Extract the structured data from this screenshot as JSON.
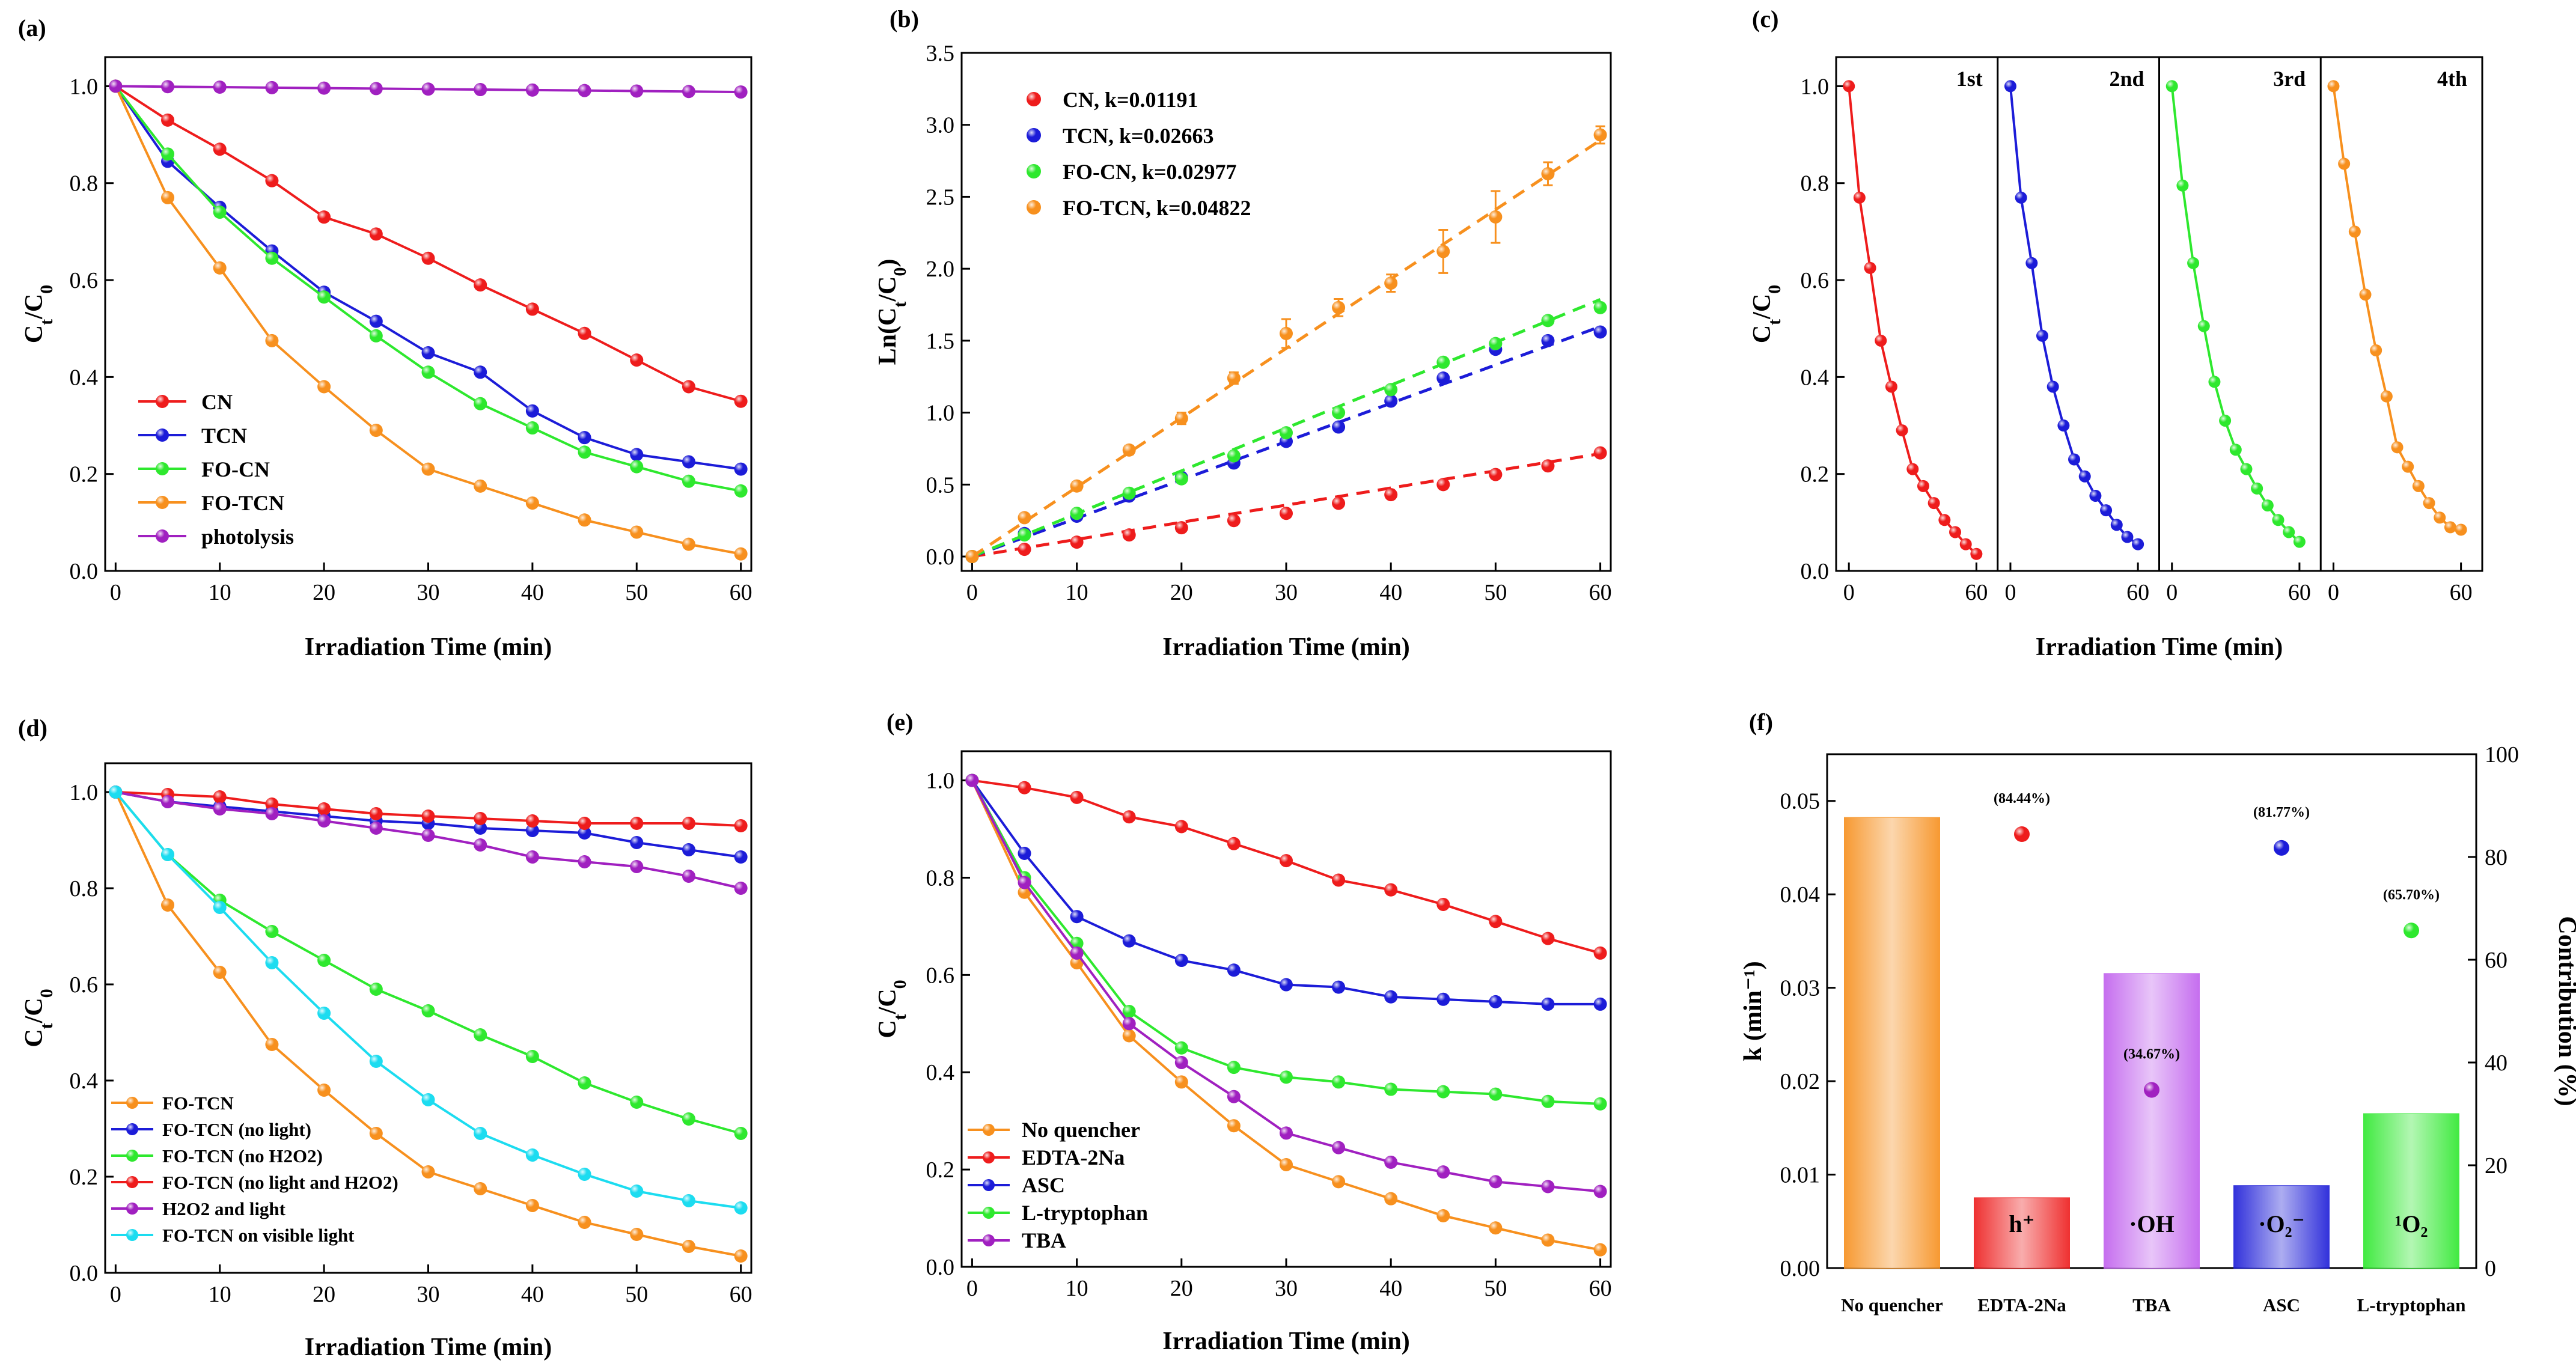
{
  "chart_data": [
    {
      "panel": "(a)",
      "type": "line",
      "xlabel": "Irradiation Time (min)",
      "ylabel": "Ct/C0",
      "xlim": [
        -1,
        61
      ],
      "ylim": [
        0,
        1.06
      ],
      "xticks": [
        0,
        10,
        20,
        30,
        40,
        50,
        60
      ],
      "yticks": [
        0.0,
        0.2,
        0.4,
        0.6,
        0.8,
        1.0
      ],
      "x": [
        0,
        5,
        10,
        15,
        20,
        25,
        30,
        35,
        40,
        45,
        50,
        55,
        60
      ],
      "legend_position": "bottom-left",
      "series": [
        {
          "name": "CN",
          "color": "#ee1c1c",
          "values": [
            1.0,
            0.93,
            0.87,
            0.805,
            0.73,
            0.695,
            0.645,
            0.59,
            0.54,
            0.49,
            0.435,
            0.38,
            0.35
          ]
        },
        {
          "name": "TCN",
          "color": "#1c1cd8",
          "values": [
            1.0,
            0.845,
            0.75,
            0.66,
            0.575,
            0.515,
            0.45,
            0.41,
            0.33,
            0.275,
            0.24,
            0.225,
            0.21
          ]
        },
        {
          "name": "FO-CN",
          "color": "#2ee82e",
          "values": [
            1.0,
            0.86,
            0.74,
            0.645,
            0.565,
            0.485,
            0.41,
            0.345,
            0.295,
            0.245,
            0.215,
            0.185,
            0.165
          ]
        },
        {
          "name": "FO-TCN",
          "color": "#f7901e",
          "values": [
            1.0,
            0.77,
            0.625,
            0.475,
            0.38,
            0.29,
            0.21,
            0.175,
            0.14,
            0.105,
            0.08,
            0.055,
            0.035
          ]
        },
        {
          "name": "photolysis",
          "color": "#a020c0",
          "values": [
            1.0,
            0.999,
            0.998,
            0.997,
            0.996,
            0.995,
            0.994,
            0.993,
            0.992,
            0.991,
            0.99,
            0.989,
            0.988
          ]
        }
      ]
    },
    {
      "panel": "(b)",
      "type": "scatter",
      "xlabel": "Irradiation Time (min)",
      "ylabel": "Ln(Ct/C0)",
      "xlim": [
        -1,
        61
      ],
      "ylim": [
        -0.1,
        3.5
      ],
      "xticks": [
        0,
        10,
        20,
        30,
        40,
        50,
        60
      ],
      "yticks": [
        0.0,
        0.5,
        1.0,
        1.5,
        2.0,
        2.5,
        3.0,
        3.5
      ],
      "x": [
        0,
        5,
        10,
        15,
        20,
        25,
        30,
        35,
        40,
        45,
        50,
        55,
        60
      ],
      "fit_lines": "dashed linear fits",
      "legend_position": "top-left",
      "series": [
        {
          "name": "CN, k=0.01191",
          "color": "#ee1c1c",
          "k": 0.01191,
          "values": [
            0,
            0.05,
            0.1,
            0.15,
            0.2,
            0.25,
            0.3,
            0.37,
            0.43,
            0.5,
            0.57,
            0.63,
            0.72
          ]
        },
        {
          "name": "TCN, k=0.02663",
          "color": "#1c1cd8",
          "k": 0.02663,
          "values": [
            0,
            0.16,
            0.28,
            0.42,
            0.55,
            0.65,
            0.8,
            0.9,
            1.08,
            1.24,
            1.44,
            1.5,
            1.56
          ]
        },
        {
          "name": "FO-CN, k=0.02977",
          "color": "#2ee82e",
          "k": 0.02977,
          "values": [
            0,
            0.15,
            0.3,
            0.44,
            0.54,
            0.7,
            0.86,
            1.0,
            1.16,
            1.35,
            1.48,
            1.64,
            1.73
          ]
        },
        {
          "name": "FO-TCN, k=0.04822",
          "color": "#f7901e",
          "k": 0.04822,
          "values": [
            0,
            0.27,
            0.49,
            0.74,
            0.96,
            1.24,
            1.55,
            1.73,
            1.9,
            2.12,
            2.36,
            2.66,
            2.93
          ],
          "errors": [
            0,
            0.02,
            0.03,
            0.03,
            0.04,
            0.04,
            0.1,
            0.06,
            0.06,
            0.15,
            0.18,
            0.08,
            0.06
          ]
        }
      ]
    },
    {
      "panel": "(c)",
      "type": "line",
      "xlabel": "Irradiation Time (min)",
      "ylabel": "Ct/C0",
      "ylim": [
        0,
        1.06
      ],
      "yticks": [
        0.0,
        0.2,
        0.4,
        0.6,
        0.8,
        1.0
      ],
      "subpanel_xlim": [
        -6,
        70
      ],
      "subpanel_xticks": [
        0,
        60
      ],
      "x": [
        0,
        5,
        10,
        15,
        20,
        25,
        30,
        35,
        40,
        45,
        50,
        55,
        60
      ],
      "series": [
        {
          "name": "1st",
          "color": "#ee1c1c",
          "values": [
            1.0,
            0.77,
            0.625,
            0.475,
            0.38,
            0.29,
            0.21,
            0.175,
            0.14,
            0.105,
            0.08,
            0.055,
            0.035
          ]
        },
        {
          "name": "2nd",
          "color": "#1c1cd8",
          "values": [
            1.0,
            0.77,
            0.635,
            0.485,
            0.38,
            0.3,
            0.23,
            0.195,
            0.155,
            0.125,
            0.095,
            0.07,
            0.055
          ]
        },
        {
          "name": "3rd",
          "color": "#2ee82e",
          "values": [
            1.0,
            0.795,
            0.635,
            0.505,
            0.39,
            0.31,
            0.25,
            0.21,
            0.17,
            0.135,
            0.105,
            0.08,
            0.06
          ]
        },
        {
          "name": "4th",
          "color": "#f7901e",
          "values": [
            1.0,
            0.84,
            0.7,
            0.57,
            0.455,
            0.36,
            0.255,
            0.215,
            0.175,
            0.14,
            0.11,
            0.09,
            0.085
          ]
        }
      ]
    },
    {
      "panel": "(d)",
      "type": "line",
      "xlabel": "Irradiation Time (min)",
      "ylabel": "Ct/C0",
      "xlim": [
        -1,
        61
      ],
      "ylim": [
        0,
        1.06
      ],
      "xticks": [
        0,
        10,
        20,
        30,
        40,
        50,
        60
      ],
      "yticks": [
        0.0,
        0.2,
        0.4,
        0.6,
        0.8,
        1.0
      ],
      "x": [
        0,
        5,
        10,
        15,
        20,
        25,
        30,
        35,
        40,
        45,
        50,
        55,
        60
      ],
      "legend_position": "bottom-left",
      "series": [
        {
          "name": "FO-TCN",
          "color": "#f7901e",
          "values": [
            1.0,
            0.765,
            0.625,
            0.475,
            0.38,
            0.29,
            0.21,
            0.175,
            0.14,
            0.105,
            0.08,
            0.055,
            0.035
          ]
        },
        {
          "name": "FO-TCN (no light)",
          "color": "#1c1cd8",
          "values": [
            1.0,
            0.98,
            0.97,
            0.96,
            0.95,
            0.94,
            0.935,
            0.925,
            0.92,
            0.915,
            0.895,
            0.88,
            0.865
          ]
        },
        {
          "name": "FO-TCN (no H2O2)",
          "color": "#2ee82e",
          "values": [
            1.0,
            0.87,
            0.775,
            0.71,
            0.65,
            0.59,
            0.545,
            0.495,
            0.45,
            0.395,
            0.355,
            0.32,
            0.29
          ]
        },
        {
          "name": "FO-TCN (no light and H2O2)",
          "color": "#ee1c1c",
          "values": [
            1.0,
            0.995,
            0.99,
            0.975,
            0.965,
            0.955,
            0.95,
            0.945,
            0.94,
            0.935,
            0.935,
            0.935,
            0.93
          ]
        },
        {
          "name": "H2O2 and light",
          "color": "#a020c0",
          "values": [
            1.0,
            0.98,
            0.965,
            0.955,
            0.94,
            0.925,
            0.91,
            0.89,
            0.865,
            0.855,
            0.845,
            0.825,
            0.8
          ]
        },
        {
          "name": "FO-TCN on visible light",
          "color": "#1cdcf0",
          "values": [
            1.0,
            0.87,
            0.76,
            0.645,
            0.54,
            0.44,
            0.36,
            0.29,
            0.245,
            0.205,
            0.17,
            0.15,
            0.135
          ]
        }
      ]
    },
    {
      "panel": "(e)",
      "type": "line",
      "xlabel": "Irradiation Time (min)",
      "ylabel": "Ct/C0",
      "xlim": [
        -1,
        61
      ],
      "ylim": [
        0,
        1.06
      ],
      "xticks": [
        0,
        10,
        20,
        30,
        40,
        50,
        60
      ],
      "yticks": [
        0.0,
        0.2,
        0.4,
        0.6,
        0.8,
        1.0
      ],
      "x": [
        0,
        5,
        10,
        15,
        20,
        25,
        30,
        35,
        40,
        45,
        50,
        55,
        60
      ],
      "legend_position": "bottom-left",
      "series": [
        {
          "name": "No quencher",
          "color": "#f7901e",
          "values": [
            1.0,
            0.77,
            0.625,
            0.475,
            0.38,
            0.29,
            0.21,
            0.175,
            0.14,
            0.105,
            0.08,
            0.055,
            0.035
          ]
        },
        {
          "name": "EDTA-2Na",
          "color": "#ee1c1c",
          "values": [
            1.0,
            0.985,
            0.965,
            0.925,
            0.905,
            0.87,
            0.835,
            0.795,
            0.775,
            0.745,
            0.71,
            0.675,
            0.645
          ]
        },
        {
          "name": "ASC",
          "color": "#1c1cd8",
          "values": [
            1.0,
            0.85,
            0.72,
            0.67,
            0.63,
            0.61,
            0.58,
            0.575,
            0.555,
            0.55,
            0.545,
            0.54,
            0.54
          ]
        },
        {
          "name": "L-tryptophan",
          "color": "#2ee82e",
          "values": [
            1.0,
            0.8,
            0.665,
            0.525,
            0.45,
            0.41,
            0.39,
            0.38,
            0.365,
            0.36,
            0.355,
            0.34,
            0.335
          ]
        },
        {
          "name": "TBA",
          "color": "#a020c0",
          "values": [
            1.0,
            0.79,
            0.645,
            0.5,
            0.42,
            0.35,
            0.275,
            0.245,
            0.215,
            0.195,
            0.175,
            0.165,
            0.155
          ]
        }
      ]
    },
    {
      "panel": "(f)",
      "type": "bar",
      "xlabel": "",
      "ylabel": "k (min⁻¹)",
      "ylabel_right": "Contribution (%)",
      "ylim": [
        0,
        0.055
      ],
      "yticks": [
        0.0,
        0.01,
        0.02,
        0.03,
        0.04,
        0.05
      ],
      "ylim_right": [
        0,
        100
      ],
      "yticks_right": [
        0,
        20,
        40,
        60,
        80,
        100
      ],
      "categories": [
        "No quencher",
        "EDTA-2Na",
        "TBA",
        "ASC",
        "L-tryptophan"
      ],
      "values": [
        0.0482,
        0.0075,
        0.0315,
        0.0088,
        0.0165
      ],
      "bar_colors": [
        "#f7901e",
        "#ee1c1c",
        "#c060ee",
        "#1c1cd8",
        "#2ee82e"
      ],
      "bar_labels": [
        "",
        "h⁺",
        "·OH",
        "·O₂⁻",
        "¹O₂"
      ],
      "contributions": [
        {
          "category": "EDTA-2Na",
          "value": 84.44,
          "label": "(84.44%)",
          "color": "#ee1c1c"
        },
        {
          "category": "TBA",
          "value": 34.67,
          "label": "(34.67%)",
          "color": "#a020c0"
        },
        {
          "category": "ASC",
          "value": 81.77,
          "label": "(81.77%)",
          "color": "#1c1cd8"
        },
        {
          "category": "L-tryptophan",
          "value": 65.7,
          "label": "(65.70%)",
          "color": "#2ee82e"
        }
      ]
    }
  ]
}
